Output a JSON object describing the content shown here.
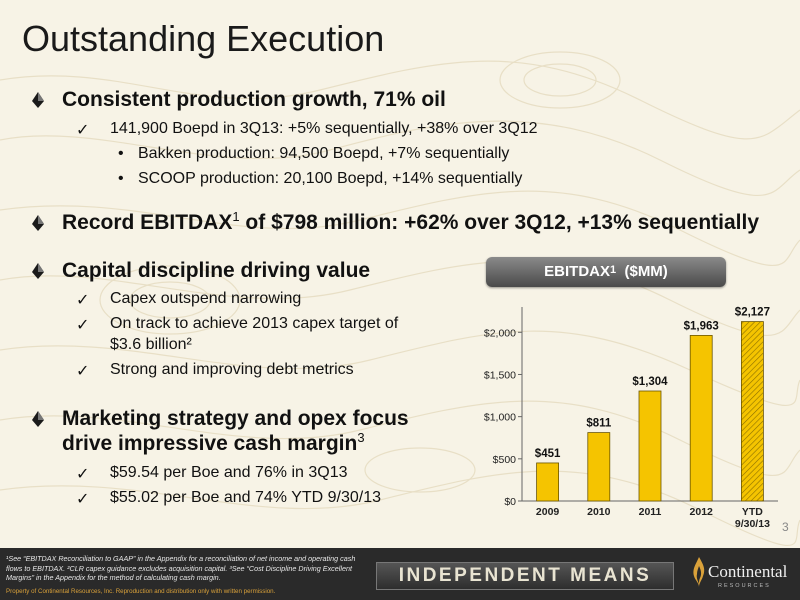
{
  "title": "Outstanding Execution",
  "sections": [
    {
      "heading": "Consistent production growth, 71% oil",
      "checks": [
        {
          "text": "141,900 Boepd in 3Q13: +5% sequentially, +38% over 3Q12",
          "subs": [
            "Bakken production: 94,500 Boepd, +7% sequentially",
            "SCOOP production: 20,100 Boepd, +14% sequentially"
          ]
        }
      ]
    },
    {
      "heading_pre": "Record EBITDAX",
      "heading_sup": "1",
      "heading_post": " of $798 million: +62% over 3Q12, +13% sequentially"
    },
    {
      "heading": "Capital discipline driving value",
      "checks": [
        {
          "text": "Capex outspend narrowing"
        },
        {
          "text_line1": "On track to achieve 2013 capex target of",
          "text_line2": "$3.6 billion²"
        },
        {
          "text": "Strong and improving debt metrics"
        }
      ]
    },
    {
      "heading_line1": "Marketing strategy and opex focus",
      "heading_line2_pre": "drive impressive cash margin",
      "heading_line2_sup": "3",
      "checks": [
        {
          "text": "$59.54 per Boe and 76% in 3Q13"
        },
        {
          "text": "$55.02 per Boe and 74% YTD 9/30/13"
        }
      ]
    }
  ],
  "chart_banner": {
    "pre": "EBITDAX",
    "sup": "1",
    "post": "  ($MM)"
  },
  "chart_data": {
    "type": "bar",
    "categories": [
      "2009",
      "2010",
      "2011",
      "2012",
      "YTD 9/30/13"
    ],
    "category_lines": [
      [
        "2009"
      ],
      [
        "2010"
      ],
      [
        "2011"
      ],
      [
        "2012"
      ],
      [
        "YTD",
        "9/30/13"
      ]
    ],
    "values": [
      451,
      811,
      1304,
      1963,
      2127
    ],
    "data_labels": [
      "$451",
      "$811",
      "$1,304",
      "$1,963",
      "$2,127"
    ],
    "yticks": [
      0,
      500,
      1000,
      1500,
      2000
    ],
    "ytick_labels": [
      "$0",
      "$500",
      "$1,000",
      "$1,500",
      "$2,000"
    ],
    "ylim": [
      0,
      2300
    ],
    "grid": false,
    "bar_color": "#f5c400",
    "highlight_last": true
  },
  "page_number": "3",
  "footer": {
    "footnote": "¹See “EBITDAX Reconciliation to GAAP” in the Appendix for a reconciliation of net income and operating cash flows to EBITDAX. ²CLR capex guidance excludes acquisition capital. ³See “Cost Discipline Driving Excellent Margins” in the Appendix for the method of calculating cash margin.",
    "property": "Property of Continental Resources, Inc. Reproduction and distribution only with written permission.",
    "tagline": "INDEPENDENT MEANS",
    "logo_name": "Continental",
    "logo_sub": "RESOURCES"
  }
}
